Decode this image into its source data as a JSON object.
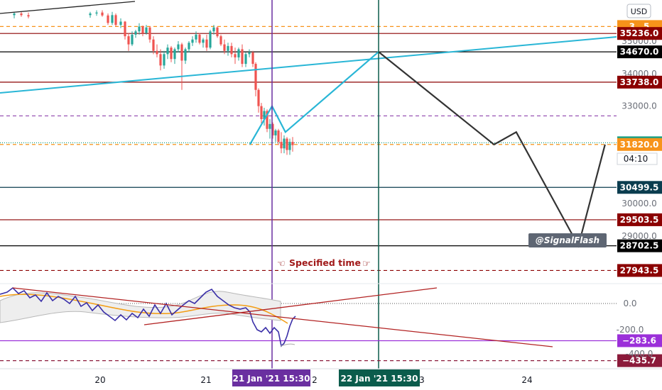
{
  "header": {
    "currency_button": "USD"
  },
  "watermark": "@SignalFlash",
  "annotation": {
    "specified_time": "Specified time"
  },
  "price_axis": {
    "ticks": [
      {
        "value": 35000,
        "label": "35000.0"
      },
      {
        "value": 34000,
        "label": "34000.0"
      },
      {
        "value": 33000,
        "label": "33000.0"
      },
      {
        "value": 30000,
        "label": "30000.0"
      },
      {
        "value": 29000,
        "label": "29000.0"
      }
    ]
  },
  "price_levels": [
    {
      "value": 35450,
      "label": "3…5",
      "color": "#f7931a",
      "style": "dashed"
    },
    {
      "value": 35236.0,
      "label": "35236.0",
      "color": "#8b0000",
      "style": "solid"
    },
    {
      "value": 34670.0,
      "label": "34670.0",
      "color": "#000000",
      "style": "solid"
    },
    {
      "value": 33738.0,
      "label": "33738.0",
      "color": "#8b0000",
      "style": "solid"
    },
    {
      "value": 32700,
      "label": "",
      "color": "#8e44ad",
      "style": "dashed"
    },
    {
      "value": 31872.5,
      "label": "31872.5",
      "color": "#16a085",
      "style": "dotted"
    },
    {
      "value": 31820.0,
      "label": "31820.0",
      "color": "#f7931a",
      "style": "dashed"
    },
    {
      "value": 30499.5,
      "label": "30499.5",
      "color": "#0b3d4f",
      "style": "solid"
    },
    {
      "value": 29503.5,
      "label": "29503.5",
      "color": "#8b0000",
      "style": "solid"
    },
    {
      "value": 28702.5,
      "label": "28702.5",
      "color": "#000000",
      "style": "solid"
    },
    {
      "value": 27943.5,
      "label": "27943.5",
      "color": "#8b0000",
      "style": "dashed"
    }
  ],
  "countdown": "04:10",
  "osc_axis": {
    "ticks": [
      {
        "value": 0,
        "label": "0.0"
      },
      {
        "value": -200,
        "label": "-200.0"
      }
    ]
  },
  "osc_levels": [
    {
      "value": -283.6,
      "label": "−283.6",
      "color": "#9b30d9",
      "style": "solid"
    },
    {
      "value": -435.7,
      "label": "−435.7",
      "color": "#8b1a3a",
      "style": "dashed"
    }
  ],
  "time_axis": {
    "ticks": [
      {
        "label": "20"
      },
      {
        "label": "21"
      },
      {
        "label": "2"
      },
      {
        "label": "3"
      },
      {
        "label": "24"
      }
    ],
    "highlights": [
      {
        "label": "21 Jan '21   15:30",
        "color": "#6a2fa0"
      },
      {
        "label": "22 Jan '21   15:30",
        "color": "#0b5c4c"
      }
    ]
  },
  "chart_data": {
    "type": "line",
    "description_series": [
      {
        "kind": "projection",
        "color": "#333333",
        "points": [
          [
            0.0,
            34670
          ],
          [
            1.3,
            31820
          ],
          [
            1.55,
            32200
          ],
          [
            2.25,
            28702.5
          ],
          [
            2.55,
            31820
          ]
        ]
      },
      {
        "kind": "projection",
        "color": "#29b6d6",
        "points": [
          [
            -1.45,
            31820
          ],
          [
            -1.2,
            33000
          ],
          [
            -1.05,
            32200
          ],
          [
            0.0,
            34670
          ]
        ]
      }
    ],
    "ylim": [
      27600,
      35900
    ]
  }
}
